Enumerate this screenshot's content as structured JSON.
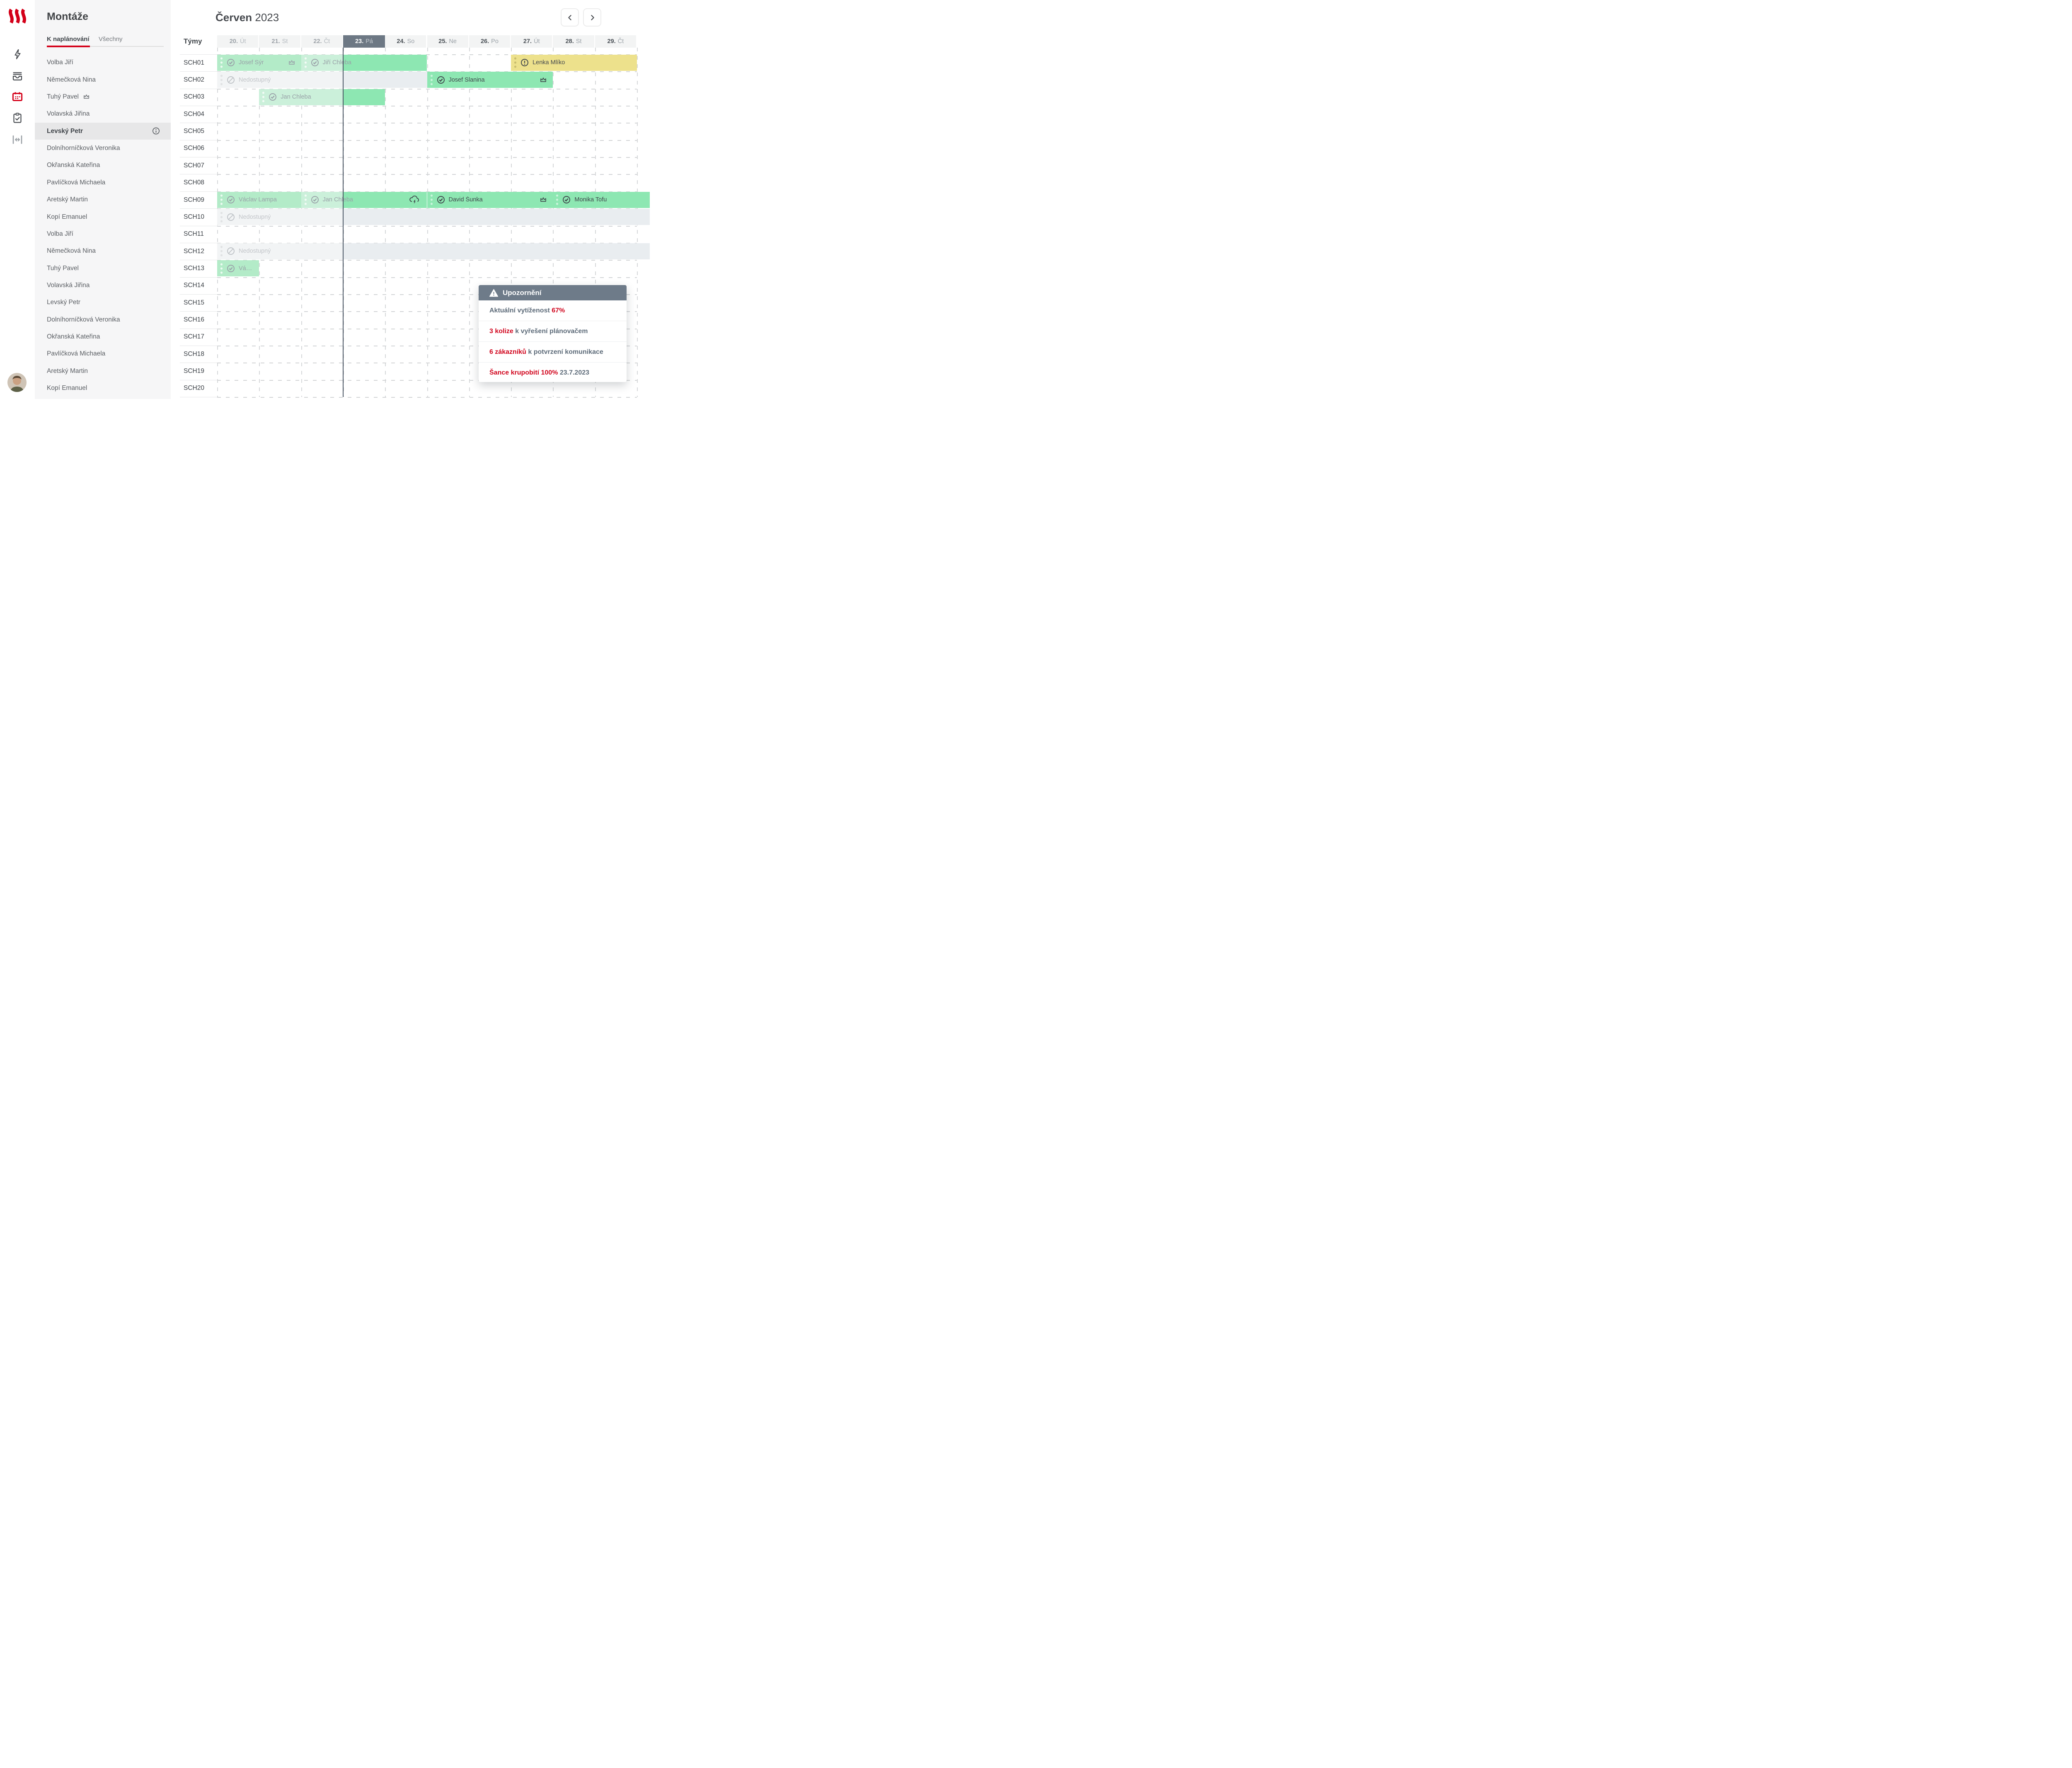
{
  "colors": {
    "brand_red": "#d40019",
    "accent_red": "#d1051d",
    "slate": "#6e7b89",
    "today_header": "#6d7884",
    "green_active": "#8de7b2",
    "green_past": "#b3ebc8",
    "green_light": "#cbf0da",
    "yellow": "#ede18c",
    "gray_unavail": "#f2f4f5",
    "gray_unavail_late": "#e9edf0",
    "time_line": "#4d5866"
  },
  "rail": {
    "items": [
      {
        "icon": "flash-icon"
      },
      {
        "icon": "inbox-icon"
      },
      {
        "icon": "calendar-icon",
        "active": true
      },
      {
        "icon": "clipboard-check-icon"
      },
      {
        "icon": "column-width-icon",
        "dim": true
      }
    ]
  },
  "sidebar": {
    "title": "Montáže",
    "tabs": [
      {
        "label": "K naplánování",
        "active": true
      },
      {
        "label": "Všechny",
        "active": false
      }
    ],
    "items": [
      {
        "label": "Volba Jiří"
      },
      {
        "label": "Němečková Nina"
      },
      {
        "label": "Tuhý Pavel",
        "crown": true
      },
      {
        "label": "Volavská Jiřina"
      },
      {
        "label": "Levský Petr",
        "selected": true,
        "info": true
      },
      {
        "label": "Dolníhorníčková Veronika"
      },
      {
        "label": "Okřanská Kateřina"
      },
      {
        "label": "Pavlíčková Michaela"
      },
      {
        "label": "Aretský Martin"
      },
      {
        "label": "Kopí Emanuel"
      },
      {
        "label": "Volba Jiří"
      },
      {
        "label": "Němečková Nina"
      },
      {
        "label": "Tuhý Pavel"
      },
      {
        "label": "Volavská Jiřina"
      },
      {
        "label": "Levský Petr"
      },
      {
        "label": "Dolníhorníčková Veronika"
      },
      {
        "label": "Okřanská Kateřina"
      },
      {
        "label": "Pavlíčková Michaela"
      },
      {
        "label": "Aretský Martin"
      },
      {
        "label": "Kopí Emanuel"
      }
    ]
  },
  "calendar": {
    "month": "Červen",
    "year": "2023",
    "teams_label": "Týmy",
    "line_day": 3,
    "days": [
      {
        "num": "20.",
        "dow": "Út",
        "state": "past"
      },
      {
        "num": "21.",
        "dow": "St",
        "state": "past"
      },
      {
        "num": "22.",
        "dow": "Čt",
        "state": "past"
      },
      {
        "num": "23.",
        "dow": "Pá",
        "state": "today"
      },
      {
        "num": "24.",
        "dow": "So",
        "state": "future"
      },
      {
        "num": "25.",
        "dow": "Ne",
        "state": "future"
      },
      {
        "num": "26.",
        "dow": "Po",
        "state": "future"
      },
      {
        "num": "27.",
        "dow": "Út",
        "state": "future"
      },
      {
        "num": "28.",
        "dow": "St",
        "state": "future"
      },
      {
        "num": "29.",
        "dow": "Čt",
        "state": "future"
      }
    ],
    "rows": [
      {
        "team": "SCH01",
        "bars": [
          {
            "label": "Josef Sýr",
            "start": 0,
            "end": 2,
            "kind": "past",
            "icon": "check-circle-icon",
            "crown": true
          },
          {
            "label": "Jiří Chleba",
            "start": 2,
            "end": 5,
            "kind": "split",
            "icon": "check-circle-icon"
          },
          {
            "label": "Lenka Mlíko",
            "start": 7,
            "end": 10,
            "kind": "warning",
            "icon": "alert-circle-icon"
          }
        ]
      },
      {
        "team": "SCH02",
        "bars": [
          {
            "label": "Nedostupný",
            "start": 0,
            "end": 5,
            "kind": "unavail",
            "icon": "blocked-circle-icon"
          },
          {
            "label": "Josef Slanina",
            "start": 5,
            "end": 8,
            "kind": "active",
            "icon": "check-circle-icon",
            "crown": true
          }
        ]
      },
      {
        "team": "SCH03",
        "bars": [
          {
            "label": "Jan Chleba",
            "start": 1,
            "end": 4,
            "kind": "split",
            "icon": "check-circle-icon"
          }
        ]
      },
      {
        "team": "SCH04",
        "bars": []
      },
      {
        "team": "SCH05",
        "bars": []
      },
      {
        "team": "SCH06",
        "bars": []
      },
      {
        "team": "SCH07",
        "bars": []
      },
      {
        "team": "SCH08",
        "bars": []
      },
      {
        "team": "SCH09",
        "bars": [
          {
            "label": "Václav Lampa",
            "start": 0,
            "end": 2,
            "kind": "past",
            "icon": "check-circle-icon"
          },
          {
            "label": "Jan Chleba",
            "start": 2,
            "end": 5,
            "kind": "split",
            "icon": "check-circle-icon",
            "storm": true
          },
          {
            "label": "David Šunka",
            "start": 5,
            "end": 8,
            "kind": "active",
            "icon": "check-circle-icon",
            "crown": true
          },
          {
            "label": "Monika Tofu",
            "start": 8,
            "end": 10.31,
            "kind": "active",
            "icon": "check-circle-icon"
          }
        ]
      },
      {
        "team": "SCH10",
        "bars": [
          {
            "label": "Nedostupný",
            "start": 0,
            "end": 10.31,
            "kind": "unavail",
            "icon": "blocked-circle-icon"
          }
        ]
      },
      {
        "team": "SCH11",
        "bars": []
      },
      {
        "team": "SCH12",
        "bars": [
          {
            "label": "Nedostupný",
            "start": 0,
            "end": 10.31,
            "kind": "unavail",
            "icon": "blocked-circle-icon"
          }
        ]
      },
      {
        "team": "SCH13",
        "bars": [
          {
            "label": "Vá…",
            "start": 0,
            "end": 1,
            "kind": "past",
            "icon": "check-circle-icon"
          }
        ]
      },
      {
        "team": "SCH14",
        "bars": []
      },
      {
        "team": "SCH15",
        "bars": []
      },
      {
        "team": "SCH16",
        "bars": []
      },
      {
        "team": "SCH17",
        "bars": []
      },
      {
        "team": "SCH18",
        "bars": []
      },
      {
        "team": "SCH19",
        "bars": []
      },
      {
        "team": "SCH20",
        "bars": []
      }
    ]
  },
  "alert": {
    "title": "Upozornění",
    "rows": [
      {
        "segments": [
          {
            "text": "Aktuální vytíženost ",
            "color": "slate"
          },
          {
            "text": "67%",
            "color": "red"
          }
        ]
      },
      {
        "segments": [
          {
            "text": "3 kolize",
            "color": "red"
          },
          {
            "text": " k vyřešení plánovačem",
            "color": "slate"
          }
        ]
      },
      {
        "segments": [
          {
            "text": "6 zákazníků",
            "color": "red"
          },
          {
            "text": " k potvrzení komunikace",
            "color": "slate"
          }
        ]
      },
      {
        "segments": [
          {
            "text": "Šance krupobití 100%",
            "color": "red"
          },
          {
            "text": " 23.7.2023",
            "color": "slate"
          }
        ]
      }
    ]
  }
}
